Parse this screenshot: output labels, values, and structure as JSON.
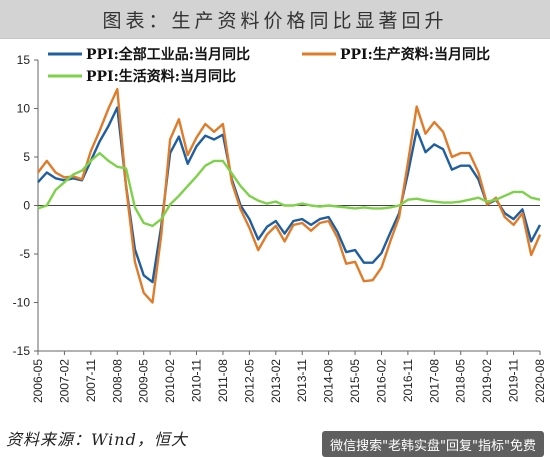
{
  "title": "图表：生产资料价格同比显著回升",
  "source": "资料来源：Wind，恒大",
  "watermark": "微信搜索\"老韩实盘\"回复\"指标\"免费",
  "chart_data": {
    "type": "line",
    "ylim": [
      -15,
      15
    ],
    "yticks": [
      -15,
      -10,
      -5,
      0,
      5,
      10,
      15
    ],
    "xtick_labels": [
      "2006-05",
      "2007-02",
      "2007-11",
      "2008-08",
      "2009-05",
      "2010-02",
      "2010-11",
      "2011-08",
      "2012-05",
      "2013-02",
      "2013-11",
      "2014-08",
      "2015-05",
      "2016-02",
      "2016-11",
      "2017-08",
      "2018-05",
      "2019-02",
      "2019-11",
      "2020-08"
    ],
    "legend_position": "top",
    "series": [
      {
        "name": "PPI:全部工业品:当月同比",
        "color": "#1f5fa0",
        "points": [
          [
            "2006-05",
            2.4
          ],
          [
            "2006-08",
            3.4
          ],
          [
            "2006-11",
            2.8
          ],
          [
            "2007-02",
            2.6
          ],
          [
            "2007-05",
            2.8
          ],
          [
            "2007-08",
            2.6
          ],
          [
            "2007-11",
            4.6
          ],
          [
            "2008-02",
            6.6
          ],
          [
            "2008-05",
            8.2
          ],
          [
            "2008-08",
            10.1
          ],
          [
            "2008-11",
            2.0
          ],
          [
            "2009-02",
            -4.5
          ],
          [
            "2009-05",
            -7.2
          ],
          [
            "2009-08",
            -7.9
          ],
          [
            "2009-11",
            -2.1
          ],
          [
            "2010-02",
            5.4
          ],
          [
            "2010-05",
            7.1
          ],
          [
            "2010-08",
            4.3
          ],
          [
            "2010-11",
            6.1
          ],
          [
            "2011-02",
            7.2
          ],
          [
            "2011-05",
            6.8
          ],
          [
            "2011-08",
            7.3
          ],
          [
            "2011-11",
            2.7
          ],
          [
            "2012-02",
            0.0
          ],
          [
            "2012-05",
            -1.4
          ],
          [
            "2012-08",
            -3.5
          ],
          [
            "2012-11",
            -2.2
          ],
          [
            "2013-02",
            -1.6
          ],
          [
            "2013-05",
            -2.9
          ],
          [
            "2013-08",
            -1.6
          ],
          [
            "2013-11",
            -1.4
          ],
          [
            "2014-02",
            -2.0
          ],
          [
            "2014-05",
            -1.4
          ],
          [
            "2014-08",
            -1.2
          ],
          [
            "2014-11",
            -2.7
          ],
          [
            "2015-02",
            -4.8
          ],
          [
            "2015-05",
            -4.6
          ],
          [
            "2015-08",
            -5.9
          ],
          [
            "2015-11",
            -5.9
          ],
          [
            "2016-02",
            -4.9
          ],
          [
            "2016-05",
            -2.8
          ],
          [
            "2016-08",
            -0.8
          ],
          [
            "2016-11",
            3.3
          ],
          [
            "2017-02",
            7.8
          ],
          [
            "2017-05",
            5.5
          ],
          [
            "2017-08",
            6.3
          ],
          [
            "2017-11",
            5.8
          ],
          [
            "2018-02",
            3.7
          ],
          [
            "2018-05",
            4.1
          ],
          [
            "2018-08",
            4.1
          ],
          [
            "2018-11",
            2.7
          ],
          [
            "2019-02",
            0.1
          ],
          [
            "2019-05",
            0.6
          ],
          [
            "2019-08",
            -0.8
          ],
          [
            "2019-11",
            -1.4
          ],
          [
            "2020-02",
            -0.4
          ],
          [
            "2020-05",
            -3.7
          ],
          [
            "2020-08",
            -2.0
          ]
        ]
      },
      {
        "name": "PPI:生产资料:当月同比",
        "color": "#e07b2a",
        "points": [
          [
            "2006-05",
            3.4
          ],
          [
            "2006-08",
            4.6
          ],
          [
            "2006-11",
            3.4
          ],
          [
            "2007-02",
            2.9
          ],
          [
            "2007-05",
            3.0
          ],
          [
            "2007-08",
            2.7
          ],
          [
            "2007-11",
            5.6
          ],
          [
            "2008-02",
            7.7
          ],
          [
            "2008-05",
            10.0
          ],
          [
            "2008-08",
            12.0
          ],
          [
            "2008-11",
            1.9
          ],
          [
            "2009-02",
            -5.8
          ],
          [
            "2009-05",
            -9.0
          ],
          [
            "2009-08",
            -10.0
          ],
          [
            "2009-11",
            -3.0
          ],
          [
            "2010-02",
            6.8
          ],
          [
            "2010-05",
            8.9
          ],
          [
            "2010-08",
            5.2
          ],
          [
            "2010-11",
            7.0
          ],
          [
            "2011-02",
            8.4
          ],
          [
            "2011-05",
            7.6
          ],
          [
            "2011-08",
            8.4
          ],
          [
            "2011-11",
            2.4
          ],
          [
            "2012-02",
            -0.4
          ],
          [
            "2012-05",
            -2.3
          ],
          [
            "2012-08",
            -4.6
          ],
          [
            "2012-11",
            -3.0
          ],
          [
            "2013-02",
            -2.1
          ],
          [
            "2013-05",
            -3.7
          ],
          [
            "2013-08",
            -2.0
          ],
          [
            "2013-11",
            -1.8
          ],
          [
            "2014-02",
            -2.6
          ],
          [
            "2014-05",
            -1.8
          ],
          [
            "2014-08",
            -1.6
          ],
          [
            "2014-11",
            -3.3
          ],
          [
            "2015-02",
            -6.0
          ],
          [
            "2015-05",
            -5.8
          ],
          [
            "2015-08",
            -7.8
          ],
          [
            "2015-11",
            -7.7
          ],
          [
            "2016-02",
            -6.4
          ],
          [
            "2016-05",
            -3.7
          ],
          [
            "2016-08",
            -1.2
          ],
          [
            "2016-11",
            4.4
          ],
          [
            "2017-02",
            10.2
          ],
          [
            "2017-05",
            7.4
          ],
          [
            "2017-08",
            8.6
          ],
          [
            "2017-11",
            7.6
          ],
          [
            "2018-02",
            5.0
          ],
          [
            "2018-05",
            5.4
          ],
          [
            "2018-08",
            5.4
          ],
          [
            "2018-11",
            3.4
          ],
          [
            "2019-02",
            0.1
          ],
          [
            "2019-05",
            0.8
          ],
          [
            "2019-08",
            -1.2
          ],
          [
            "2019-11",
            -2.0
          ],
          [
            "2020-02",
            -0.8
          ],
          [
            "2020-05",
            -5.1
          ],
          [
            "2020-08",
            -3.0
          ]
        ]
      },
      {
        "name": "PPI:生活资料:当月同比",
        "color": "#7ed24a",
        "points": [
          [
            "2006-05",
            -0.3
          ],
          [
            "2006-08",
            0.0
          ],
          [
            "2006-11",
            1.6
          ],
          [
            "2007-02",
            2.4
          ],
          [
            "2007-05",
            3.2
          ],
          [
            "2007-08",
            3.6
          ],
          [
            "2007-11",
            4.6
          ],
          [
            "2008-02",
            5.4
          ],
          [
            "2008-05",
            4.6
          ],
          [
            "2008-08",
            4.0
          ],
          [
            "2008-11",
            3.8
          ],
          [
            "2009-02",
            -0.2
          ],
          [
            "2009-05",
            -1.8
          ],
          [
            "2009-08",
            -2.1
          ],
          [
            "2009-11",
            -1.4
          ],
          [
            "2010-02",
            0.1
          ],
          [
            "2010-05",
            1.0
          ],
          [
            "2010-08",
            2.0
          ],
          [
            "2010-11",
            3.0
          ],
          [
            "2011-02",
            4.1
          ],
          [
            "2011-05",
            4.6
          ],
          [
            "2011-08",
            4.6
          ],
          [
            "2011-11",
            3.3
          ],
          [
            "2012-02",
            2.0
          ],
          [
            "2012-05",
            1.0
          ],
          [
            "2012-08",
            0.5
          ],
          [
            "2012-11",
            0.2
          ],
          [
            "2013-02",
            0.4
          ],
          [
            "2013-05",
            0.0
          ],
          [
            "2013-08",
            0.0
          ],
          [
            "2013-11",
            0.2
          ],
          [
            "2014-02",
            0.0
          ],
          [
            "2014-05",
            -0.1
          ],
          [
            "2014-08",
            0.0
          ],
          [
            "2014-11",
            -0.1
          ],
          [
            "2015-02",
            -0.2
          ],
          [
            "2015-05",
            -0.3
          ],
          [
            "2015-08",
            -0.2
          ],
          [
            "2015-11",
            -0.3
          ],
          [
            "2016-02",
            -0.3
          ],
          [
            "2016-05",
            -0.2
          ],
          [
            "2016-08",
            0.0
          ],
          [
            "2016-11",
            0.6
          ],
          [
            "2017-02",
            0.7
          ],
          [
            "2017-05",
            0.5
          ],
          [
            "2017-08",
            0.4
          ],
          [
            "2017-11",
            0.3
          ],
          [
            "2018-02",
            0.3
          ],
          [
            "2018-05",
            0.4
          ],
          [
            "2018-08",
            0.6
          ],
          [
            "2018-11",
            0.8
          ],
          [
            "2019-02",
            0.4
          ],
          [
            "2019-05",
            0.6
          ],
          [
            "2019-08",
            1.0
          ],
          [
            "2019-11",
            1.4
          ],
          [
            "2020-02",
            1.4
          ],
          [
            "2020-05",
            0.8
          ],
          [
            "2020-08",
            0.6
          ]
        ]
      }
    ]
  }
}
